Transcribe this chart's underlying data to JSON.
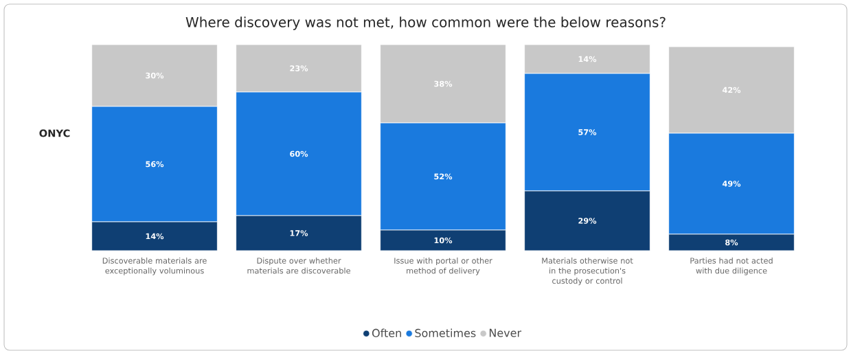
{
  "chart_data": {
    "type": "bar",
    "stacked": true,
    "title": "Where discovery was not met, how common were the below reasons?",
    "categories": [
      "Discoverable materials are exceptionally voluminous",
      "Dispute over whether materials are discoverable",
      "Issue with portal or other method of delivery",
      "Materials otherwise not in the prosecution's custody or control",
      "Parties had not acted with due diligence"
    ],
    "series": [
      {
        "name": "Often",
        "color": "#0f3f73",
        "values": [
          14,
          17,
          10,
          29,
          8
        ],
        "value_labels": [
          "14%",
          "17%",
          "10%",
          "29%",
          "8%"
        ]
      },
      {
        "name": "Sometimes",
        "color": "#1a7ade",
        "values": [
          56,
          60,
          52,
          57,
          49
        ],
        "value_labels": [
          "56%",
          "60%",
          "52%",
          "57%",
          "49%"
        ]
      },
      {
        "name": "Never",
        "color": "#c8c8c8",
        "values": [
          30,
          23,
          38,
          14,
          42
        ],
        "value_labels": [
          "30%",
          "23%",
          "38%",
          "14%",
          "42%"
        ]
      }
    ],
    "annotations": [
      "ONYC"
    ],
    "legend": "bottom"
  }
}
